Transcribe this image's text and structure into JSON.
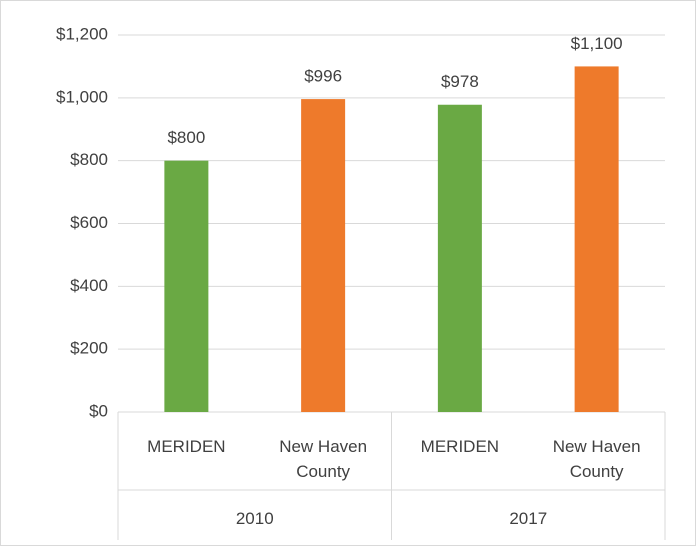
{
  "chart_data": {
    "type": "bar",
    "categories": [
      "2010",
      "2017"
    ],
    "series": [
      {
        "name": "MERIDEN",
        "color": "#6aa944",
        "values": [
          800,
          978
        ],
        "value_labels": [
          "$800",
          "$978"
        ]
      },
      {
        "name": "New Haven County",
        "color": "#ee7a2b",
        "values": [
          996,
          1100
        ],
        "value_labels": [
          "$996",
          "$1,100"
        ]
      }
    ],
    "ylim": [
      0,
      1200
    ],
    "yticks": [
      {
        "value": 0,
        "label": "$0"
      },
      {
        "value": 200,
        "label": "$200"
      },
      {
        "value": 400,
        "label": "$400"
      },
      {
        "value": 600,
        "label": "$600"
      },
      {
        "value": 800,
        "label": "$800"
      },
      {
        "value": 1000,
        "label": "$1,000"
      },
      {
        "value": 1200,
        "label": "$1,200"
      }
    ],
    "grid": true
  }
}
